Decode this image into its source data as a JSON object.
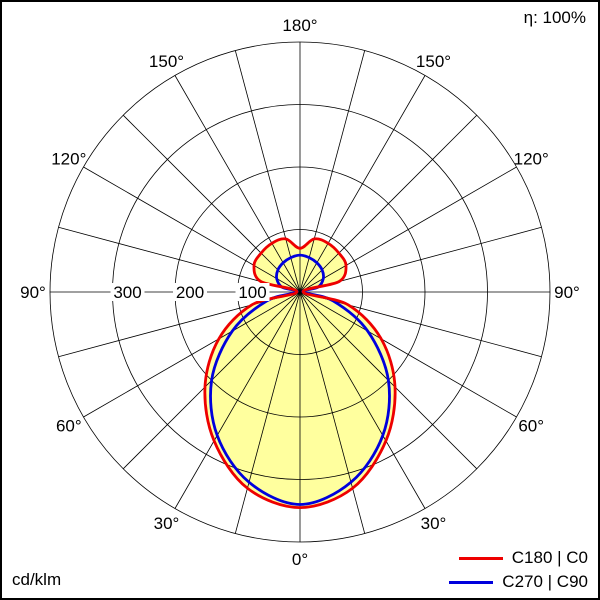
{
  "chart_data": {
    "type": "polar-photometric",
    "annotations": {
      "efficiency": "η: 100%",
      "unit": "cd/klm"
    },
    "angle_step_deg": 15,
    "angle_labels": [
      "0°",
      "30°",
      "60°",
      "90°",
      "120°",
      "150°",
      "180°"
    ],
    "ring_values": [
      100,
      200,
      300,
      400
    ],
    "ring_labels": [
      "100",
      "200",
      "300"
    ],
    "r_max": 400,
    "grid_on": true,
    "legend_position": "bottom-right",
    "gamma_deg": [
      0,
      15,
      30,
      45,
      60,
      75,
      90,
      105,
      120,
      135,
      150,
      165,
      180
    ],
    "series": [
      {
        "id": "c180-c0",
        "name": "C180 | C0",
        "color": "#ee0000",
        "values": [
          345,
          325,
          275,
          215,
          150,
          80,
          5,
          65,
          85,
          88,
          90,
          88,
          70
        ]
      },
      {
        "id": "c270-c90",
        "name": "C270 | C90",
        "color": "#0000dd",
        "values": [
          340,
          315,
          265,
          200,
          125,
          55,
          5,
          30,
          43,
          50,
          54,
          57,
          59
        ]
      }
    ],
    "fill_color": "#ffff9e",
    "grid_color": "#000000"
  }
}
